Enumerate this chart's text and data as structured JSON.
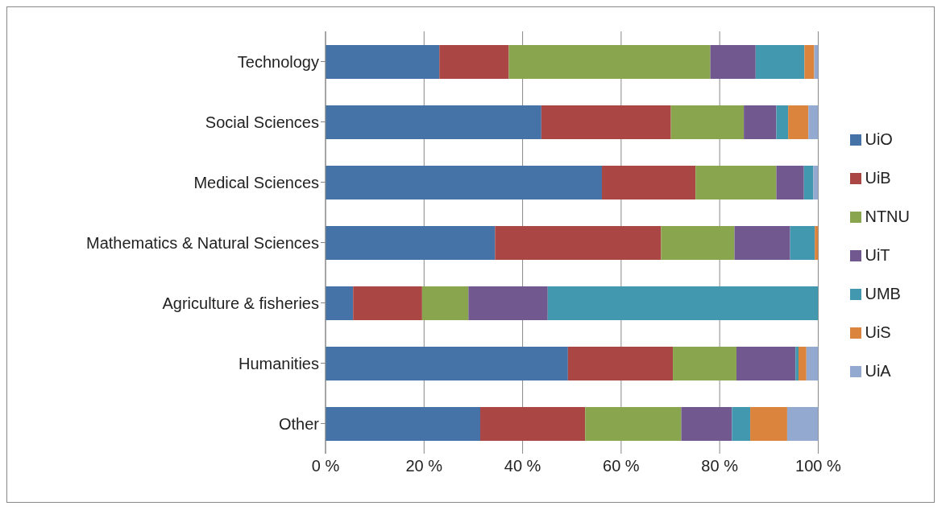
{
  "chart_data": {
    "type": "bar",
    "orientation": "horizontal",
    "stacked": true,
    "categories": [
      "Technology",
      "Social Sciences",
      "Medical Sciences",
      "Mathematics & Natural Sciences",
      "Agriculture & fisheries",
      "Humanities",
      "Other"
    ],
    "series": [
      {
        "name": "UiO",
        "color": "#4572a7",
        "values": [
          23.1,
          43.8,
          56.1,
          34.4,
          5.6,
          49.2,
          31.4
        ]
      },
      {
        "name": "UiB",
        "color": "#aa4643",
        "values": [
          14.1,
          26.3,
          19.0,
          33.7,
          14.0,
          21.3,
          21.3
        ]
      },
      {
        "name": "NTNU",
        "color": "#89a54e",
        "values": [
          40.9,
          14.8,
          16.4,
          14.9,
          9.4,
          12.9,
          19.5
        ]
      },
      {
        "name": "UiT",
        "color": "#71588f",
        "values": [
          9.2,
          6.6,
          5.6,
          11.3,
          16.1,
          12.0,
          10.3
        ]
      },
      {
        "name": "UMB",
        "color": "#4198af",
        "values": [
          9.9,
          2.4,
          1.9,
          5.0,
          54.9,
          0.6,
          3.7
        ]
      },
      {
        "name": "UiS",
        "color": "#db843d",
        "values": [
          2.0,
          4.1,
          0,
          0.7,
          0,
          1.6,
          7.5
        ]
      },
      {
        "name": "UiA",
        "color": "#93a9cf",
        "values": [
          0.8,
          2.0,
          1.0,
          0,
          0,
          2.4,
          6.3
        ]
      }
    ],
    "xlim": [
      0,
      100
    ],
    "xticks": [
      {
        "value": 0,
        "label": "0 %"
      },
      {
        "value": 20,
        "label": "20 %"
      },
      {
        "value": 40,
        "label": "40 %"
      },
      {
        "value": 60,
        "label": "60 %"
      },
      {
        "value": 80,
        "label": "80 %"
      },
      {
        "value": 100,
        "label": "100 %"
      }
    ],
    "grid": "x",
    "legend": "right"
  }
}
